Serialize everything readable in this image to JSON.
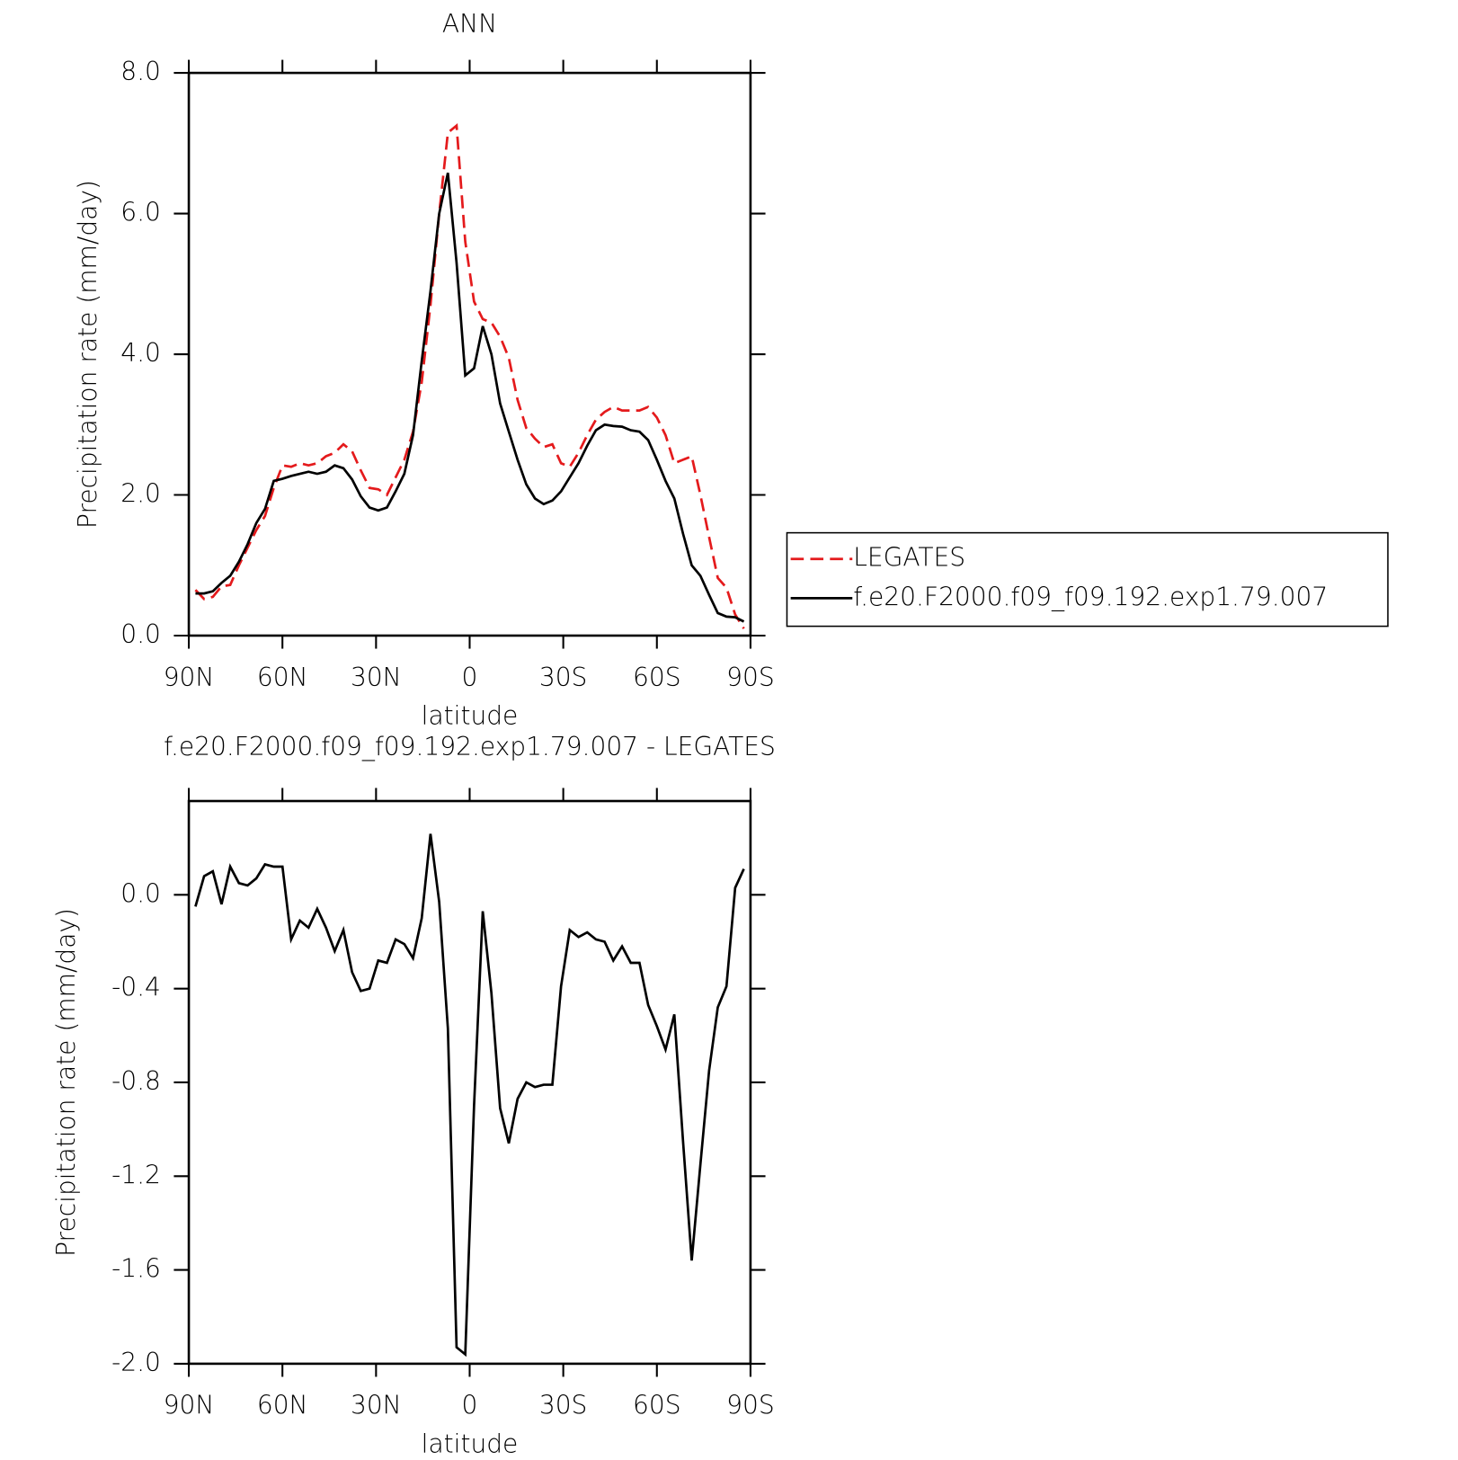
{
  "chart_data": [
    {
      "type": "line",
      "title": "ANN",
      "xlabel": "latitude",
      "ylabel": "Precipitation rate (mm/day)",
      "x": [
        87.86,
        85.1,
        82.31,
        79.53,
        76.74,
        73.95,
        71.16,
        68.37,
        65.58,
        62.79,
        60.0,
        57.21,
        54.42,
        51.63,
        48.84,
        46.04,
        43.25,
        40.46,
        37.67,
        34.88,
        32.09,
        29.3,
        26.51,
        23.72,
        20.93,
        18.14,
        15.35,
        12.56,
        9.77,
        6.98,
        4.19,
        1.4,
        -1.4,
        -4.19,
        -6.98,
        -9.77,
        -12.56,
        -15.35,
        -18.14,
        -20.93,
        -23.72,
        -26.51,
        -29.3,
        -32.09,
        -34.88,
        -37.67,
        -40.46,
        -43.25,
        -46.04,
        -48.84,
        -51.63,
        -54.42,
        -57.21,
        -60.0,
        -62.79,
        -65.58,
        -68.37,
        -71.16,
        -73.95,
        -76.74,
        -79.53,
        -82.31,
        -85.1,
        -87.86
      ],
      "series": [
        {
          "name": "LEGATES",
          "color": "#e41a1c",
          "linestyle": "dashed",
          "values": [
            0.65,
            0.52,
            0.55,
            0.7,
            0.72,
            1.0,
            1.25,
            1.5,
            1.7,
            2.1,
            2.42,
            2.4,
            2.45,
            2.42,
            2.45,
            2.55,
            2.6,
            2.72,
            2.62,
            2.35,
            2.1,
            2.08,
            2.0,
            2.25,
            2.5,
            2.9,
            3.6,
            4.7,
            6.0,
            7.15,
            7.25,
            5.6,
            4.75,
            4.5,
            4.45,
            4.25,
            3.95,
            3.35,
            2.95,
            2.8,
            2.68,
            2.72,
            2.45,
            2.4,
            2.6,
            2.85,
            3.07,
            3.18,
            3.25,
            3.2,
            3.2,
            3.2,
            3.25,
            3.1,
            2.85,
            2.45,
            2.5,
            2.55,
            2.0,
            1.4,
            0.82,
            0.68,
            0.3,
            0.1
          ]
        },
        {
          "name": "f.e20.F2000.f09_f09.192.exp1.79.007",
          "color": "#000000",
          "linestyle": "solid",
          "values": [
            0.6,
            0.6,
            0.63,
            0.75,
            0.85,
            1.05,
            1.3,
            1.6,
            1.8,
            2.2,
            2.23,
            2.27,
            2.3,
            2.33,
            2.3,
            2.33,
            2.42,
            2.38,
            2.22,
            1.98,
            1.82,
            1.78,
            1.82,
            2.05,
            2.3,
            2.85,
            3.9,
            4.9,
            6.0,
            6.58,
            5.3,
            3.7,
            3.8,
            4.4,
            4.0,
            3.3,
            2.9,
            2.5,
            2.15,
            1.95,
            1.87,
            1.92,
            2.05,
            2.25,
            2.45,
            2.7,
            2.92,
            3.0,
            2.98,
            2.97,
            2.92,
            2.9,
            2.78,
            2.5,
            2.2,
            1.95,
            1.45,
            1.0,
            0.85,
            0.58,
            0.32,
            0.27,
            0.26,
            0.2
          ]
        }
      ],
      "xlim": [
        90,
        -90
      ],
      "xticks": [
        {
          "value": 90,
          "label": "90N"
        },
        {
          "value": 60,
          "label": "60N"
        },
        {
          "value": 30,
          "label": "30N"
        },
        0,
        {
          "value": -30,
          "label": "30S"
        },
        {
          "value": -60,
          "label": "60S"
        },
        {
          "value": -90,
          "label": "90S"
        }
      ],
      "ylim": [
        0,
        8
      ],
      "yticks": [
        {
          "value": 0,
          "label": "0.0"
        },
        {
          "value": 2,
          "label": "2.0"
        },
        {
          "value": 4,
          "label": "4.0"
        },
        {
          "value": 6,
          "label": "6.0"
        },
        {
          "value": 8,
          "label": "8.0"
        }
      ],
      "legend": "right",
      "grid": false
    },
    {
      "type": "line",
      "title": "f.e20.F2000.f09_f09.192.exp1.79.007 - LEGATES",
      "xlabel": "latitude",
      "ylabel": "Precipitation rate (mm/day)",
      "x": [
        87.86,
        85.1,
        82.31,
        79.53,
        76.74,
        73.95,
        71.16,
        68.37,
        65.58,
        62.79,
        60.0,
        57.21,
        54.42,
        51.63,
        48.84,
        46.04,
        43.25,
        40.46,
        37.67,
        34.88,
        32.09,
        29.3,
        26.51,
        23.72,
        20.93,
        18.14,
        15.35,
        12.56,
        9.77,
        6.98,
        4.19,
        1.4,
        -1.4,
        -4.19,
        -6.98,
        -9.77,
        -12.56,
        -15.35,
        -18.14,
        -20.93,
        -23.72,
        -26.51,
        -29.3,
        -32.09,
        -34.88,
        -37.67,
        -40.46,
        -43.25,
        -46.04,
        -48.84,
        -51.63,
        -54.42,
        -57.21,
        -60.0,
        -62.79,
        -65.58,
        -68.37,
        -71.16,
        -73.95,
        -76.74,
        -79.53,
        -82.31,
        -85.1,
        -87.86
      ],
      "values": [
        -0.05,
        0.08,
        0.1,
        -0.04,
        0.12,
        0.05,
        0.04,
        0.07,
        0.13,
        0.12,
        0.12,
        -0.19,
        -0.11,
        -0.14,
        -0.06,
        -0.14,
        -0.24,
        -0.15,
        -0.33,
        -0.41,
        -0.4,
        -0.28,
        -0.29,
        -0.19,
        -0.21,
        -0.27,
        -0.1,
        0.26,
        -0.03,
        -0.57,
        -1.93,
        -1.96,
        -0.9,
        -0.07,
        -0.42,
        -0.91,
        -1.06,
        -0.87,
        -0.8,
        -0.82,
        -0.81,
        -0.81,
        -0.39,
        -0.15,
        -0.18,
        -0.16,
        -0.19,
        -0.2,
        -0.28,
        -0.22,
        -0.29,
        -0.29,
        -0.47,
        -0.56,
        -0.66,
        -0.51,
        -1.05,
        -1.56,
        -1.15,
        -0.75,
        -0.48,
        -0.39,
        0.03,
        0.11
      ],
      "color": "#000000",
      "xlim": [
        90,
        -90
      ],
      "xticks": [
        {
          "value": 90,
          "label": "90N"
        },
        {
          "value": 60,
          "label": "60N"
        },
        {
          "value": 30,
          "label": "30N"
        },
        0,
        {
          "value": -30,
          "label": "30S"
        },
        {
          "value": -60,
          "label": "60S"
        },
        {
          "value": -90,
          "label": "90S"
        }
      ],
      "ylim": [
        -2.0,
        0.4
      ],
      "yticks": [
        {
          "value": -2.0,
          "label": "-2.0"
        },
        {
          "value": -1.6,
          "label": "-1.6"
        },
        {
          "value": -1.2,
          "label": "-1.2"
        },
        {
          "value": -0.8,
          "label": "-0.8"
        },
        {
          "value": -0.4,
          "label": "-0.4"
        },
        {
          "value": 0,
          "label": "0.0"
        }
      ],
      "grid": false
    }
  ]
}
